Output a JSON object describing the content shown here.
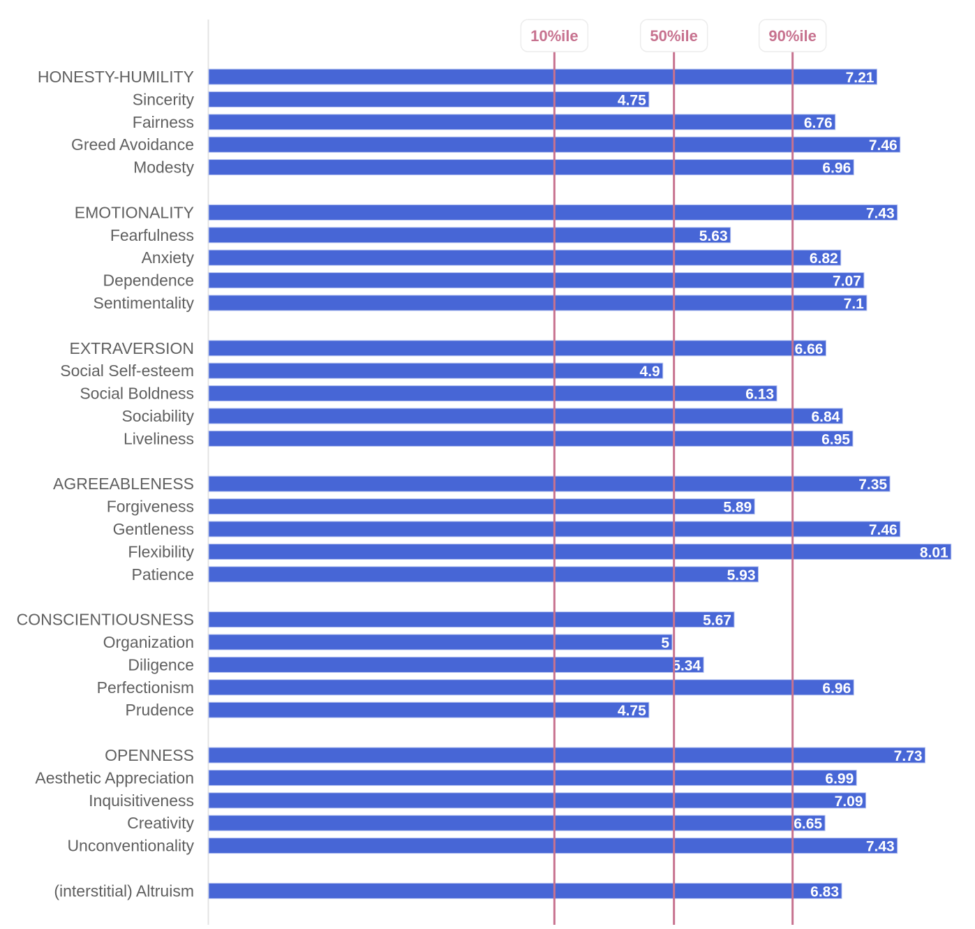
{
  "chart_data": {
    "type": "bar",
    "orientation": "horizontal",
    "title": "",
    "xlabel": "",
    "ylabel": "",
    "xlim": [
      0,
      8.05
    ],
    "grid": false,
    "bar_color": "#4766d6",
    "reference_line_color": "#c7728f",
    "reference_lines": [
      {
        "label": "10%ile",
        "value": 3.73
      },
      {
        "label": "50%ile",
        "value": 5.02
      },
      {
        "label": "90%ile",
        "value": 6.3
      }
    ],
    "groups": [
      {
        "name": "HONESTY-HUMILITY",
        "items": [
          {
            "label": "HONESTY-HUMILITY",
            "value": 7.21,
            "display": "7.21"
          },
          {
            "label": "Sincerity",
            "value": 4.75,
            "display": "4.75"
          },
          {
            "label": "Fairness",
            "value": 6.76,
            "display": "6.76"
          },
          {
            "label": "Greed Avoidance",
            "value": 7.46,
            "display": "7.46"
          },
          {
            "label": "Modesty",
            "value": 6.96,
            "display": "6.96"
          }
        ]
      },
      {
        "name": "EMOTIONALITY",
        "items": [
          {
            "label": "EMOTIONALITY",
            "value": 7.43,
            "display": "7.43"
          },
          {
            "label": "Fearfulness",
            "value": 5.63,
            "display": "5.63"
          },
          {
            "label": "Anxiety",
            "value": 6.82,
            "display": "6.82"
          },
          {
            "label": "Dependence",
            "value": 7.07,
            "display": "7.07"
          },
          {
            "label": "Sentimentality",
            "value": 7.1,
            "display": "7.1"
          }
        ]
      },
      {
        "name": "EXTRAVERSION",
        "items": [
          {
            "label": "EXTRAVERSION",
            "value": 6.66,
            "display": "6.66"
          },
          {
            "label": "Social Self-esteem",
            "value": 4.9,
            "display": "4.9"
          },
          {
            "label": "Social Boldness",
            "value": 6.13,
            "display": "6.13"
          },
          {
            "label": "Sociability",
            "value": 6.84,
            "display": "6.84"
          },
          {
            "label": "Liveliness",
            "value": 6.95,
            "display": "6.95"
          }
        ]
      },
      {
        "name": "AGREEABLENESS",
        "items": [
          {
            "label": "AGREEABLENESS",
            "value": 7.35,
            "display": "7.35"
          },
          {
            "label": "Forgiveness",
            "value": 5.89,
            "display": "5.89"
          },
          {
            "label": "Gentleness",
            "value": 7.46,
            "display": "7.46"
          },
          {
            "label": "Flexibility",
            "value": 8.01,
            "display": "8.01"
          },
          {
            "label": "Patience",
            "value": 5.93,
            "display": "5.93"
          }
        ]
      },
      {
        "name": "CONSCIENTIOUSNESS",
        "items": [
          {
            "label": "CONSCIENTIOUSNESS",
            "value": 5.67,
            "display": "5.67"
          },
          {
            "label": "Organization",
            "value": 5,
            "display": "5"
          },
          {
            "label": "Diligence",
            "value": 5.34,
            "display": "5.34"
          },
          {
            "label": "Perfectionism",
            "value": 6.96,
            "display": "6.96"
          },
          {
            "label": "Prudence",
            "value": 4.75,
            "display": "4.75"
          }
        ]
      },
      {
        "name": "OPENNESS",
        "items": [
          {
            "label": "OPENNESS",
            "value": 7.73,
            "display": "7.73"
          },
          {
            "label": "Aesthetic Appreciation",
            "value": 6.99,
            "display": "6.99"
          },
          {
            "label": "Inquisitiveness",
            "value": 7.09,
            "display": "7.09"
          },
          {
            "label": "Creativity",
            "value": 6.65,
            "display": "6.65"
          },
          {
            "label": "Unconventionality",
            "value": 7.43,
            "display": "7.43"
          }
        ]
      },
      {
        "name": "INTERSTITIAL",
        "items": [
          {
            "label": "(interstitial) Altruism",
            "value": 6.83,
            "display": "6.83"
          }
        ]
      }
    ]
  }
}
